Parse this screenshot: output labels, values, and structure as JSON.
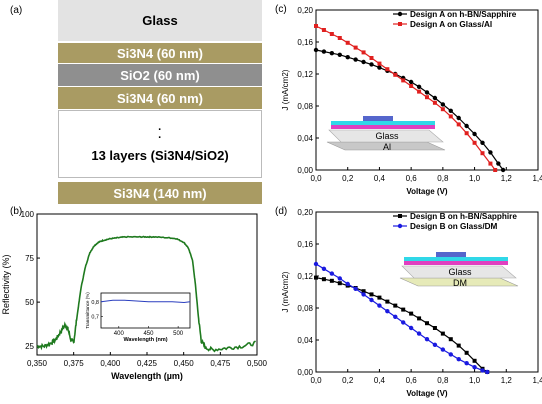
{
  "panel_a": {
    "label": "(a)",
    "layers": {
      "glass": "Glass",
      "si3n4_top": "Si3N4 (60 nm)",
      "sio2": "SiO2 (60 nm)",
      "si3n4_2": "Si3N4 (60 nm)",
      "stack": "13 layers (Si3N4/SiO2)",
      "si3n4_bottom": "Si3N4 (140 nm)"
    },
    "colors": {
      "si3n4": "#a99b63",
      "sio2": "#8f8f8f",
      "glass": "#e3e3e3"
    }
  },
  "panel_labels": {
    "b": "(b)",
    "c": "(c)",
    "d": "(d)"
  },
  "inset_labels": {
    "c_top": "Glass",
    "c_bottom": "Al",
    "d_top": "Glass",
    "d_bottom": "DM"
  },
  "chart_data": [
    {
      "id": "b",
      "type": "line",
      "xlabel": "Wavelength (µm)",
      "ylabel": "Reflectivity (%)",
      "xlim": [
        0.35,
        0.5
      ],
      "ylim": [
        20,
        100
      ],
      "xticks": [
        "0,350",
        "0,375",
        "0,400",
        "0,425",
        "0,450",
        "0,475",
        "0,500"
      ],
      "yticks": [
        "25",
        "50",
        "75",
        "100"
      ],
      "series": [
        {
          "color": "#1f7a1f",
          "x": [
            0.35,
            0.355,
            0.36,
            0.363,
            0.366,
            0.369,
            0.371,
            0.373,
            0.375,
            0.377,
            0.38,
            0.383,
            0.386,
            0.389,
            0.392,
            0.395,
            0.4,
            0.405,
            0.41,
            0.42,
            0.425,
            0.43,
            0.44,
            0.445,
            0.45,
            0.453,
            0.456,
            0.458,
            0.46,
            0.462,
            0.465,
            0.47,
            0.48,
            0.49,
            0.5
          ],
          "y": [
            25,
            25,
            27,
            29,
            33,
            37,
            35,
            29,
            27,
            40,
            58,
            70,
            78,
            82,
            84,
            85,
            86,
            86.5,
            87,
            87,
            87,
            87,
            86.5,
            86,
            84,
            81,
            74,
            60,
            42,
            28,
            24,
            23,
            24,
            25,
            27
          ]
        }
      ],
      "inset": {
        "xlabel": "Wavelength (nm)",
        "ylabel": "Transmittance (%)",
        "xlim": [
          370,
          520
        ],
        "ylim": [
          0.62,
          0.86
        ],
        "xticks": [
          "400",
          "450",
          "500"
        ],
        "yticks": [
          "0,8",
          "0,7"
        ],
        "series": [
          {
            "color": "#2b3fbf",
            "x": [
              370,
              390,
              410,
              430,
              450,
              470,
              490,
              510,
              520
            ],
            "y": [
              0.8,
              0.81,
              0.81,
              0.805,
              0.8,
              0.8,
              0.8,
              0.795,
              0.8
            ]
          }
        ]
      }
    },
    {
      "id": "c",
      "type": "line",
      "xlabel": "Voltage (V)",
      "ylabel": "J (mA/cm2)",
      "xlim": [
        0,
        1.4
      ],
      "ylim": [
        0,
        0.2
      ],
      "xticks": [
        "0,0",
        "0,2",
        "0,4",
        "0,6",
        "0,8",
        "1,0",
        "1,2",
        "1,4"
      ],
      "yticks": [
        "0,00",
        "0,04",
        "0,08",
        "0,12",
        "0,16",
        "0,20"
      ],
      "legend_position": "top-right",
      "series": [
        {
          "name": "Design A on h-BN/Sapphire",
          "color": "#000000",
          "x": [
            0,
            0.05,
            0.1,
            0.15,
            0.2,
            0.25,
            0.3,
            0.35,
            0.4,
            0.45,
            0.5,
            0.55,
            0.6,
            0.65,
            0.7,
            0.75,
            0.8,
            0.85,
            0.9,
            0.95,
            1.0,
            1.05,
            1.1,
            1.15,
            1.18
          ],
          "y": [
            0.15,
            0.148,
            0.146,
            0.144,
            0.141,
            0.138,
            0.135,
            0.132,
            0.128,
            0.124,
            0.12,
            0.115,
            0.11,
            0.104,
            0.097,
            0.09,
            0.082,
            0.074,
            0.065,
            0.055,
            0.045,
            0.034,
            0.022,
            0.008,
            0.0
          ]
        },
        {
          "name": "Design A on Glass/Al",
          "color": "#e0201f",
          "x": [
            0,
            0.05,
            0.1,
            0.15,
            0.2,
            0.25,
            0.3,
            0.35,
            0.4,
            0.45,
            0.5,
            0.55,
            0.6,
            0.65,
            0.7,
            0.75,
            0.8,
            0.85,
            0.9,
            0.95,
            1.0,
            1.05,
            1.1,
            1.13
          ],
          "y": [
            0.18,
            0.175,
            0.17,
            0.165,
            0.159,
            0.153,
            0.147,
            0.14,
            0.133,
            0.126,
            0.119,
            0.112,
            0.105,
            0.098,
            0.091,
            0.084,
            0.076,
            0.067,
            0.057,
            0.046,
            0.034,
            0.021,
            0.008,
            0.0
          ]
        }
      ]
    },
    {
      "id": "d",
      "type": "line",
      "xlabel": "Voltage (V)",
      "ylabel": "J (mA/cm2)",
      "xlim": [
        0,
        1.4
      ],
      "ylim": [
        0,
        0.2
      ],
      "xticks": [
        "0,0",
        "0,2",
        "0,4",
        "0,6",
        "0,8",
        "1,0",
        "1,2",
        "1,4"
      ],
      "yticks": [
        "0,00",
        "0,04",
        "0,08",
        "0,12",
        "0,16",
        "0,20"
      ],
      "legend_position": "top-right",
      "series": [
        {
          "name": "Design B on h-BN/Sapphire",
          "color": "#000000",
          "x": [
            0,
            0.05,
            0.1,
            0.15,
            0.2,
            0.25,
            0.3,
            0.35,
            0.4,
            0.45,
            0.5,
            0.55,
            0.6,
            0.65,
            0.7,
            0.75,
            0.8,
            0.85,
            0.9,
            0.95,
            1.0,
            1.05,
            1.08
          ],
          "y": [
            0.118,
            0.116,
            0.114,
            0.111,
            0.108,
            0.105,
            0.101,
            0.097,
            0.093,
            0.088,
            0.083,
            0.078,
            0.073,
            0.067,
            0.061,
            0.055,
            0.048,
            0.041,
            0.033,
            0.024,
            0.014,
            0.004,
            0.0
          ]
        },
        {
          "name": "Design B on Glass/DM",
          "color": "#1a1ae0",
          "x": [
            0,
            0.05,
            0.1,
            0.15,
            0.2,
            0.25,
            0.3,
            0.35,
            0.4,
            0.45,
            0.5,
            0.55,
            0.6,
            0.65,
            0.7,
            0.75,
            0.8,
            0.85,
            0.9,
            0.95,
            1.0,
            1.05,
            1.08
          ],
          "y": [
            0.135,
            0.129,
            0.123,
            0.117,
            0.11,
            0.104,
            0.097,
            0.09,
            0.083,
            0.076,
            0.069,
            0.062,
            0.055,
            0.048,
            0.041,
            0.034,
            0.028,
            0.022,
            0.016,
            0.011,
            0.006,
            0.002,
            0.0
          ]
        }
      ]
    }
  ]
}
